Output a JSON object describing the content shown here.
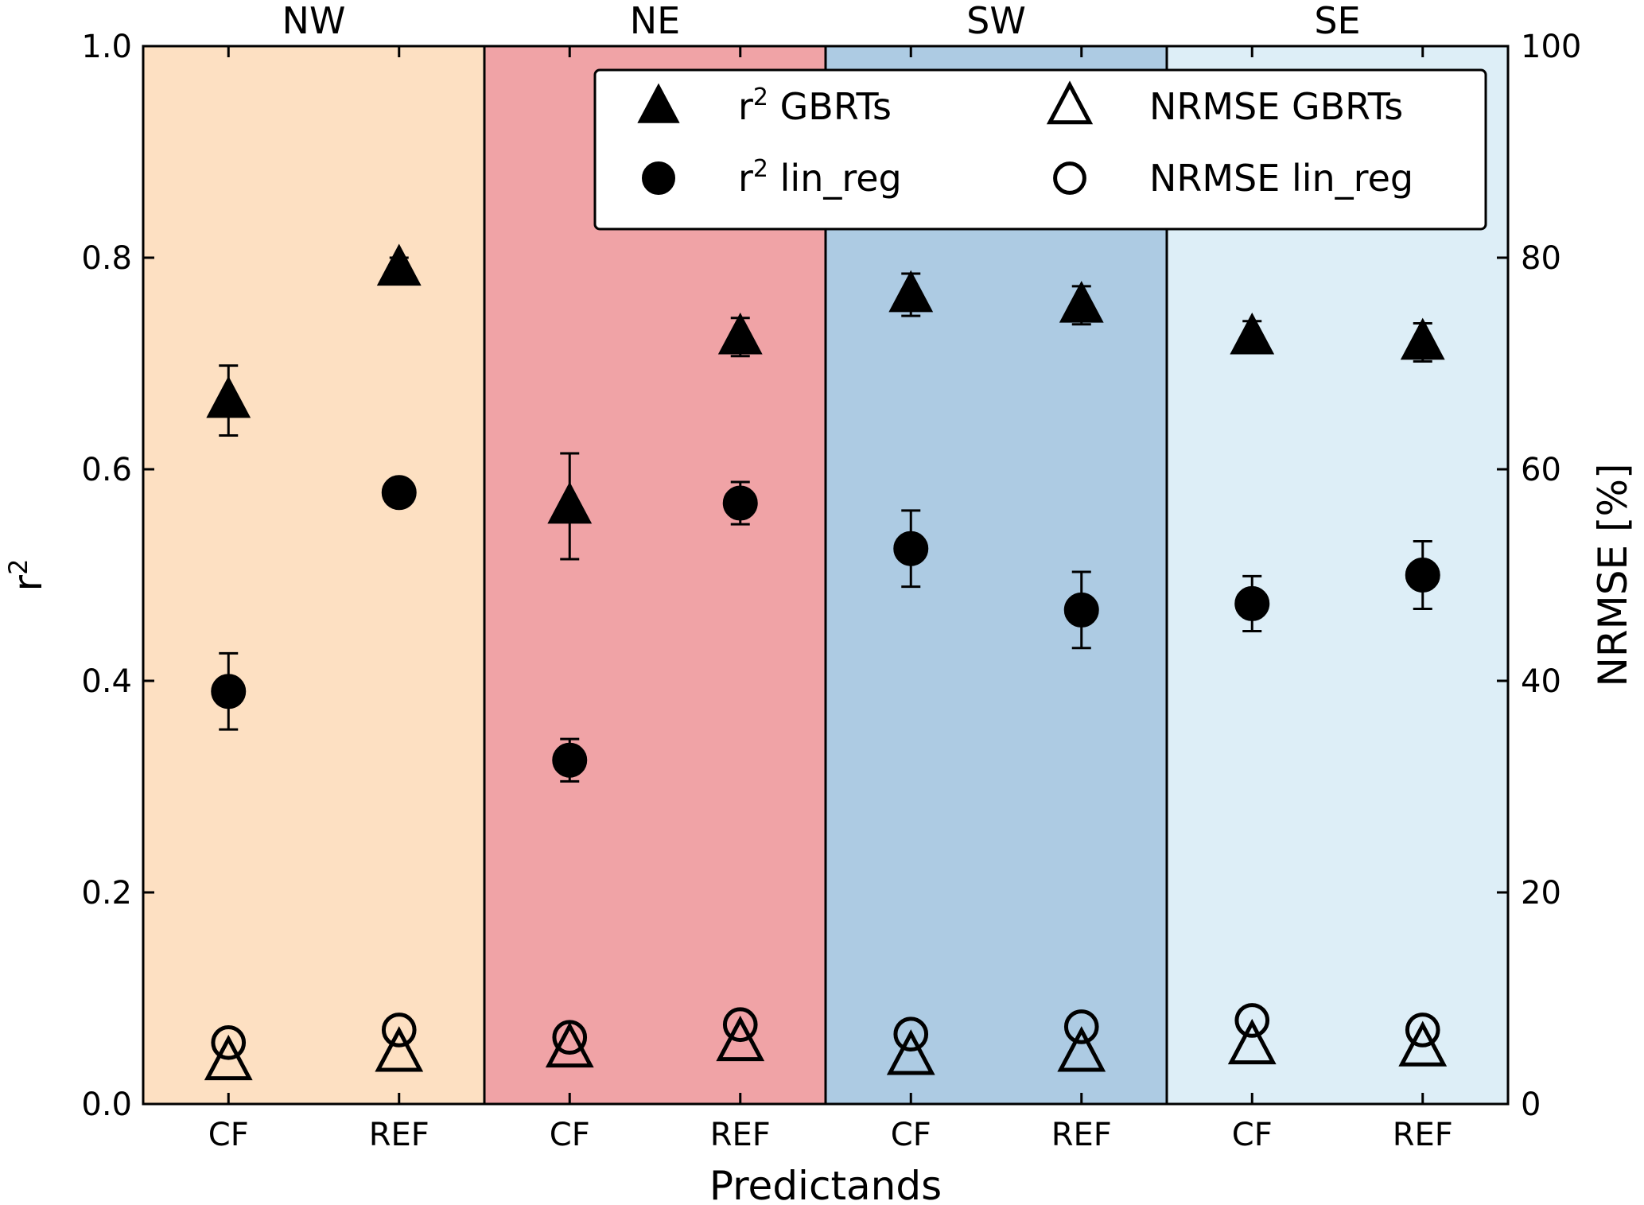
{
  "chart_data": {
    "type": "scatter",
    "xlabel": "Predictands",
    "ylabel": "r",
    "ylabel_sup": "2",
    "y2label": "NRMSE [%]",
    "ylim": [
      0,
      1.0
    ],
    "y2lim": [
      0,
      100
    ],
    "yticks": [
      "0.0",
      "0.2",
      "0.4",
      "0.6",
      "0.8",
      "1.0"
    ],
    "y2ticks": [
      "0",
      "20",
      "40",
      "60",
      "80",
      "100"
    ],
    "categories": [
      "CF",
      "REF",
      "CF",
      "REF",
      "CF",
      "REF",
      "CF",
      "REF"
    ],
    "regions": [
      {
        "name": "NW",
        "color": "#fde0c2"
      },
      {
        "name": "NE",
        "color": "#f0a3a6"
      },
      {
        "name": "SW",
        "color": "#adcbe3"
      },
      {
        "name": "SE",
        "color": "#ddeef7"
      }
    ],
    "legend": {
      "position": "top-right",
      "entries": [
        {
          "marker": "triangle-filled",
          "label": "r",
          "sup": "2",
          "suffix": " GBRTs"
        },
        {
          "marker": "circle-filled",
          "label": "r",
          "sup": "2",
          "suffix": " lin_reg"
        },
        {
          "marker": "triangle-open",
          "label": "NRMSE GBRTs",
          "sup": "",
          "suffix": ""
        },
        {
          "marker": "circle-open",
          "label": "NRMSE lin_reg",
          "sup": "",
          "suffix": ""
        }
      ]
    },
    "series": [
      {
        "key": "r2_gbrts",
        "axis": "left",
        "marker": "triangle-filled",
        "values": [
          0.665,
          0.79,
          0.565,
          0.725,
          0.765,
          0.755,
          0.725,
          0.72
        ],
        "err": [
          0.033,
          0.01,
          0.05,
          0.018,
          0.02,
          0.018,
          0.015,
          0.018
        ]
      },
      {
        "key": "r2_lin_reg",
        "axis": "left",
        "marker": "circle-filled",
        "values": [
          0.39,
          0.578,
          0.325,
          0.568,
          0.525,
          0.467,
          0.473,
          0.5
        ],
        "err": [
          0.036,
          0.0,
          0.02,
          0.02,
          0.036,
          0.036,
          0.026,
          0.032
        ]
      },
      {
        "key": "nrmse_gbrts",
        "axis": "right",
        "marker": "triangle-open",
        "values": [
          4.0,
          4.8,
          5.2,
          5.8,
          4.5,
          4.8,
          5.5,
          5.3
        ],
        "err": [
          0,
          0,
          0,
          0,
          0,
          0,
          0,
          0
        ]
      },
      {
        "key": "nrmse_lin_reg",
        "axis": "right",
        "marker": "circle-open",
        "values": [
          5.8,
          7.0,
          6.3,
          7.5,
          6.6,
          7.3,
          7.9,
          7.0
        ],
        "err": [
          0,
          0,
          0,
          0,
          0,
          0,
          0,
          0
        ]
      }
    ]
  }
}
